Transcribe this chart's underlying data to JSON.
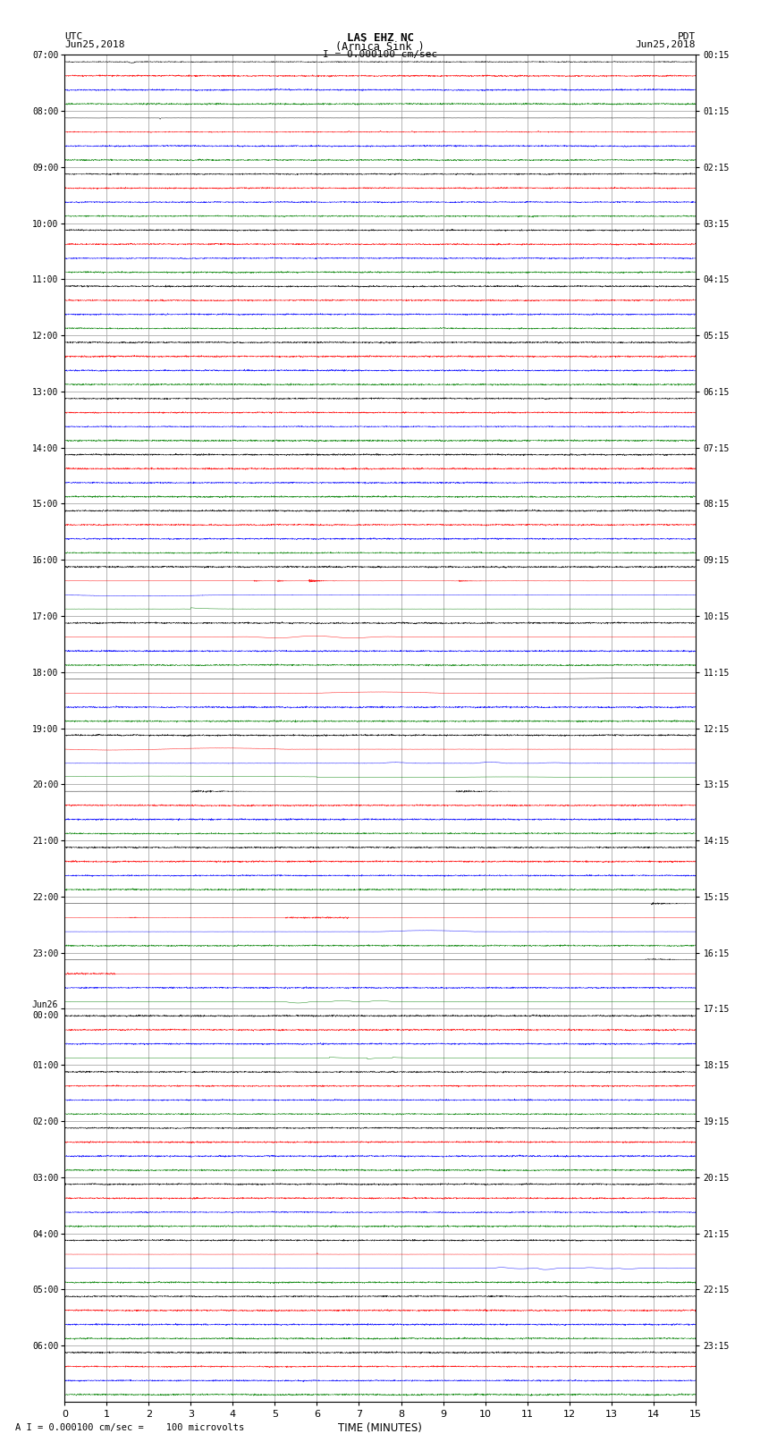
{
  "title_line1": "LAS EHZ NC",
  "title_line2": "(Arnica Sink )",
  "scale_label": "I = 0.000100 cm/sec",
  "left_label_line1": "UTC",
  "left_label_line2": "Jun25,2018",
  "right_label_line1": "PDT",
  "right_label_line2": "Jun25,2018",
  "bottom_label": "A I = 0.000100 cm/sec =    100 microvolts",
  "xlabel": "TIME (MINUTES)",
  "utc_times": [
    "07:00",
    "08:00",
    "09:00",
    "10:00",
    "11:00",
    "12:00",
    "13:00",
    "14:00",
    "15:00",
    "16:00",
    "17:00",
    "18:00",
    "19:00",
    "20:00",
    "21:00",
    "22:00",
    "23:00",
    "Jun26\n00:00",
    "01:00",
    "02:00",
    "03:00",
    "04:00",
    "05:00",
    "06:00"
  ],
  "pdt_times": [
    "00:15",
    "01:15",
    "02:15",
    "03:15",
    "04:15",
    "05:15",
    "06:15",
    "07:15",
    "08:15",
    "09:15",
    "10:15",
    "11:15",
    "12:15",
    "13:15",
    "14:15",
    "15:15",
    "16:15",
    "17:15",
    "18:15",
    "19:15",
    "20:15",
    "21:15",
    "22:15",
    "23:15"
  ],
  "n_rows": 24,
  "n_minutes": 15,
  "bg_color": "#ffffff",
  "grid_color": "#aaaaaa",
  "trace_colors": [
    "#000000",
    "#ff0000",
    "#0000ff",
    "#008000"
  ],
  "n_subrows": 4,
  "subrow_amplitude": 0.09
}
